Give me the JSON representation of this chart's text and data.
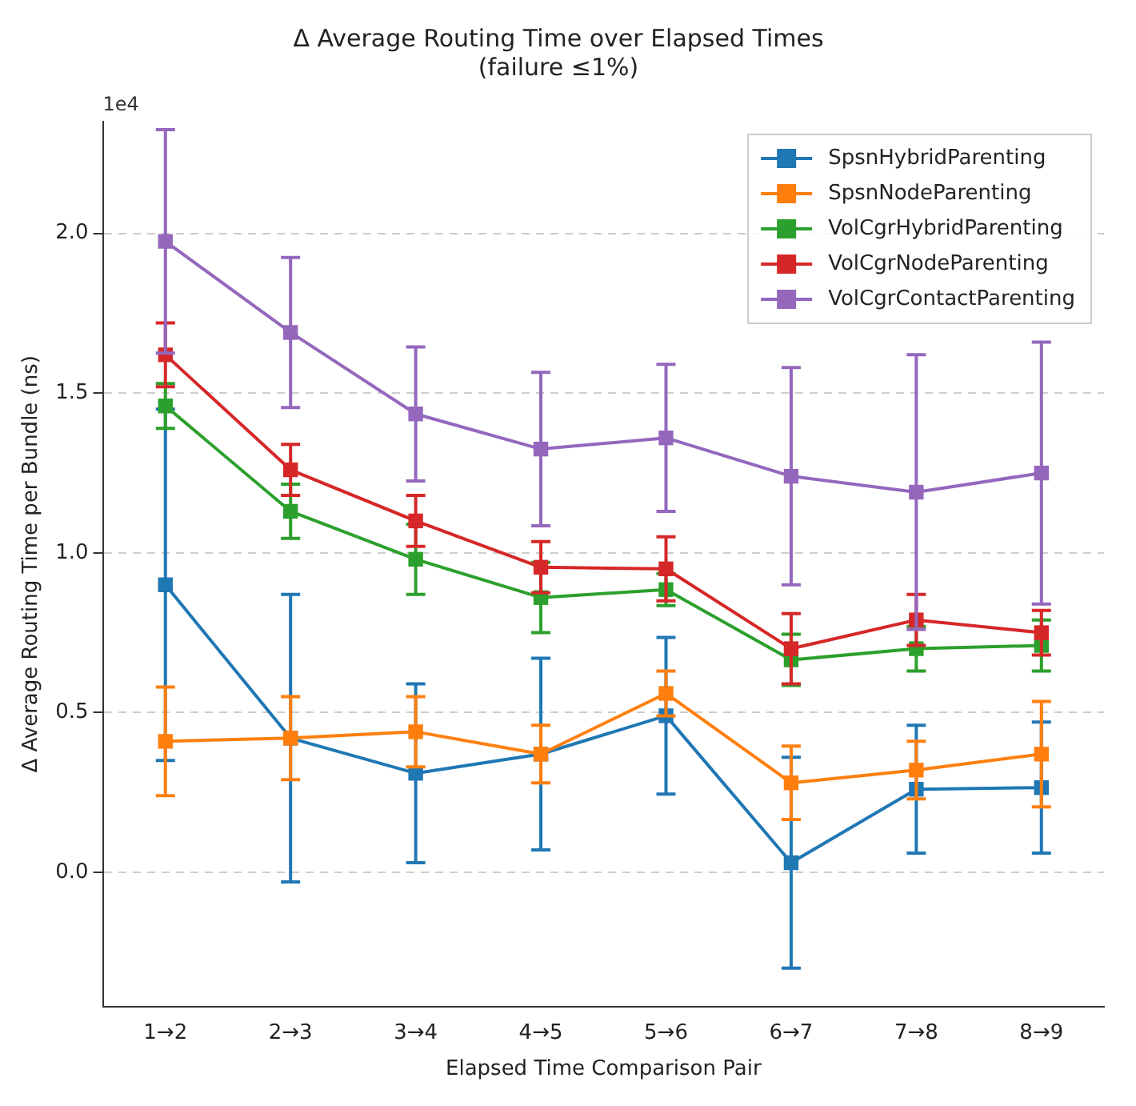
{
  "chart_data": {
    "type": "line",
    "title": "Δ Average Routing Time over Elapsed Times",
    "subtitle": "(failure ≤1%)",
    "xlabel": "Elapsed Time Comparison Pair",
    "ylabel": "Δ Average Routing Time per Bundle (ns)",
    "annotations": [
      "1e4"
    ],
    "categories": [
      "1→2",
      "2→3",
      "3→4",
      "4→5",
      "5→6",
      "6→7",
      "7→8",
      "8→9"
    ],
    "series": [
      {
        "name": "SpsnHybridParenting",
        "color": "#1f77b4",
        "values": [
          0.9,
          0.42,
          0.31,
          0.37,
          0.49,
          0.03,
          0.26,
          0.265
        ],
        "errors": [
          0.55,
          0.45,
          0.28,
          0.3,
          0.245,
          0.33,
          0.2,
          0.205
        ]
      },
      {
        "name": "SpsnNodeParenting",
        "color": "#ff7f0e",
        "values": [
          0.41,
          0.42,
          0.44,
          0.37,
          0.56,
          0.28,
          0.32,
          0.37
        ],
        "errors": [
          0.17,
          0.13,
          0.11,
          0.09,
          0.07,
          0.115,
          0.09,
          0.165
        ]
      },
      {
        "name": "VolCgrHybridParenting",
        "color": "#2ca02c",
        "values": [
          1.46,
          1.13,
          0.98,
          0.86,
          0.885,
          0.665,
          0.7,
          0.71
        ],
        "errors": [
          0.07,
          0.085,
          0.11,
          0.11,
          0.05,
          0.08,
          0.07,
          0.08
        ]
      },
      {
        "name": "VolCgrNodeParenting",
        "color": "#d62728",
        "values": [
          1.62,
          1.26,
          1.1,
          0.955,
          0.95,
          0.7,
          0.79,
          0.75
        ],
        "errors": [
          0.1,
          0.08,
          0.08,
          0.08,
          0.1,
          0.11,
          0.08,
          0.07
        ]
      },
      {
        "name": "VolCgrContactParenting",
        "color": "#9467bd",
        "values": [
          1.975,
          1.69,
          1.435,
          1.325,
          1.36,
          1.24,
          1.19,
          1.25
        ],
        "errors": [
          0.35,
          0.235,
          0.21,
          0.24,
          0.23,
          0.34,
          0.43,
          0.41
        ]
      }
    ],
    "ylim": [
      -0.42,
      2.35
    ],
    "yticks": [
      {
        "value": 0,
        "label": "0.0"
      },
      {
        "value": 0.5,
        "label": "0.5"
      },
      {
        "value": 1,
        "label": "1.0"
      },
      {
        "value": 1.5,
        "label": "1.5"
      },
      {
        "value": 2,
        "label": "2.0"
      }
    ],
    "grid": "y",
    "legend": "top right",
    "marker": "square",
    "line_style": "solid"
  }
}
